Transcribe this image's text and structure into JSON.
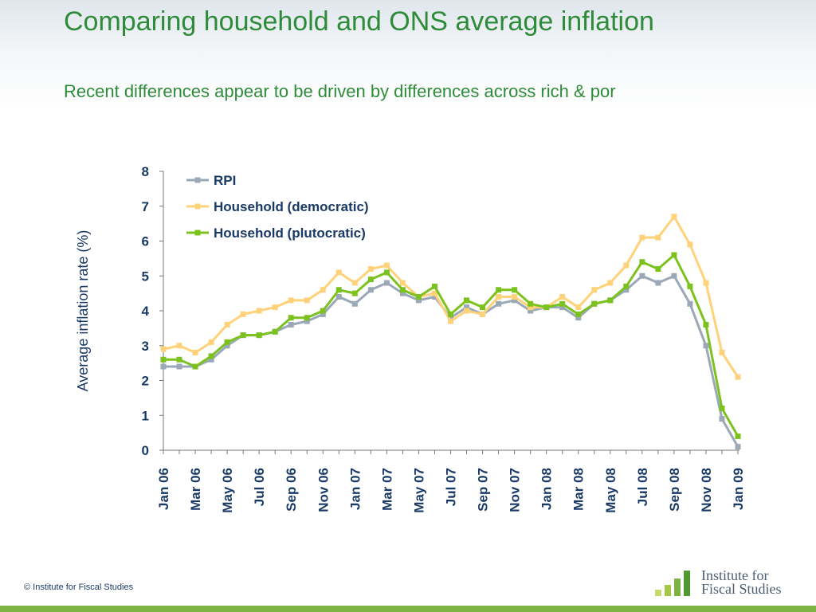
{
  "slide": {
    "title": "Comparing household and ONS average inflation",
    "subtitle": "Recent differences appear to be driven by differences across rich & por"
  },
  "footer": {
    "copyright": "© Institute for Fiscal Studies",
    "logo_line1": "Institute for",
    "logo_line2": "Fiscal Studies"
  },
  "colors": {
    "title": "#2e8b3a",
    "axis_text": "#1a3a66",
    "rpi": "#9aa8b8",
    "democratic": "#ffd27a",
    "plutocratic": "#7cc21f",
    "logo_bars": [
      "#c9d86b",
      "#a6c64a",
      "#7cb342",
      "#4f9a2e"
    ]
  },
  "chart_data": {
    "type": "line",
    "ylabel": "Average inflation rate (%)",
    "xlabel": "",
    "ylim": [
      0,
      8
    ],
    "yticks": [
      "0",
      "1",
      "2",
      "3",
      "4",
      "5",
      "6",
      "7",
      "8"
    ],
    "xtick_labels": [
      "Jan 06",
      "Mar 06",
      "May 06",
      "Jul 06",
      "Sep 06",
      "Nov 06",
      "Jan 07",
      "Mar 07",
      "May 07",
      "Jul 07",
      "Sep 07",
      "Nov 07",
      "Jan 08",
      "Mar 08",
      "May 08",
      "Jul 08",
      "Sep 08",
      "Nov 08",
      "Jan 09"
    ],
    "x": [
      "Jan 06",
      "Feb 06",
      "Mar 06",
      "Apr 06",
      "May 06",
      "Jun 06",
      "Jul 06",
      "Aug 06",
      "Sep 06",
      "Oct 06",
      "Nov 06",
      "Dec 06",
      "Jan 07",
      "Feb 07",
      "Mar 07",
      "Apr 07",
      "May 07",
      "Jun 07",
      "Jul 07",
      "Aug 07",
      "Sep 07",
      "Oct 07",
      "Nov 07",
      "Dec 07",
      "Jan 08",
      "Feb 08",
      "Mar 08",
      "Apr 08",
      "May 08",
      "Jun 08",
      "Jul 08",
      "Aug 08",
      "Sep 08",
      "Oct 08",
      "Nov 08",
      "Dec 08",
      "Jan 09"
    ],
    "legend_position": "top-left",
    "grid": false,
    "series": [
      {
        "name": "RPI",
        "color": "#9aa8b8",
        "values": [
          2.4,
          2.4,
          2.4,
          2.6,
          3.0,
          3.3,
          3.3,
          3.4,
          3.6,
          3.7,
          3.9,
          4.4,
          4.2,
          4.6,
          4.8,
          4.5,
          4.3,
          4.4,
          3.8,
          4.1,
          3.9,
          4.2,
          4.3,
          4.0,
          4.1,
          4.1,
          3.8,
          4.2,
          4.3,
          4.6,
          5.0,
          4.8,
          5.0,
          4.2,
          3.0,
          0.9,
          0.1
        ]
      },
      {
        "name": "Household (democratic)",
        "color": "#ffd27a",
        "values": [
          2.9,
          3.0,
          2.8,
          3.1,
          3.6,
          3.9,
          4.0,
          4.1,
          4.3,
          4.3,
          4.6,
          5.1,
          4.8,
          5.2,
          5.3,
          4.8,
          4.4,
          4.5,
          3.7,
          4.0,
          3.9,
          4.4,
          4.4,
          4.1,
          4.1,
          4.4,
          4.1,
          4.6,
          4.8,
          5.3,
          6.1,
          6.1,
          6.7,
          5.9,
          4.8,
          2.8,
          2.1
        ]
      },
      {
        "name": "Household (plutocratic)",
        "color": "#7cc21f",
        "values": [
          2.6,
          2.6,
          2.4,
          2.7,
          3.1,
          3.3,
          3.3,
          3.4,
          3.8,
          3.8,
          4.0,
          4.6,
          4.5,
          4.9,
          5.1,
          4.6,
          4.4,
          4.7,
          3.9,
          4.3,
          4.1,
          4.6,
          4.6,
          4.2,
          4.1,
          4.2,
          3.9,
          4.2,
          4.3,
          4.7,
          5.4,
          5.2,
          5.6,
          4.7,
          3.6,
          1.2,
          0.4
        ]
      }
    ]
  }
}
